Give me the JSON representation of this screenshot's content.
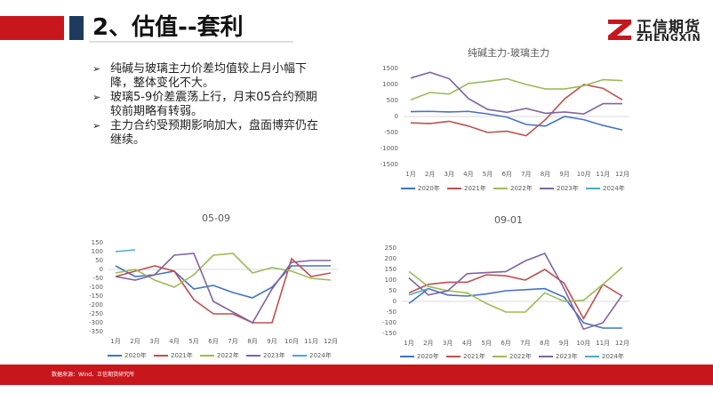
{
  "header": {
    "title": "2、估值--套利",
    "logo": "正信期货",
    "logo_en": "ZHENGXIN"
  },
  "bullets": [
    "纯碱与玻璃主力价差均值较上月小幅下降，整体变化不大。",
    "玻璃5-9价差震荡上行，月末05合约预期较前期略有转弱。",
    "主力合约受预期影响加大，盘面博弈仍在继续。"
  ],
  "source": "数据来源：Wind、正信期货研究所",
  "chart_data": [
    {
      "type": "line",
      "title": "纯碱主力-玻璃主力",
      "categories": [
        "1月",
        "2月",
        "3月",
        "4月",
        "5月",
        "6月",
        "7月",
        "8月",
        "9月",
        "10月",
        "11月",
        "12月"
      ],
      "ylim": [
        -1500,
        1500
      ],
      "yticks": [
        -1500,
        -1000,
        -500,
        0,
        500,
        1000,
        1500
      ],
      "series": [
        {
          "name": "2020年",
          "color": "#4472c4",
          "values": [
            150,
            160,
            140,
            160,
            80,
            -20,
            -250,
            -300,
            0,
            -100,
            -280,
            -420
          ]
        },
        {
          "name": "2021年",
          "color": "#c0504d",
          "values": [
            -200,
            -220,
            -150,
            -300,
            -500,
            -460,
            -600,
            -100,
            550,
            1000,
            880,
            520
          ]
        },
        {
          "name": "2022年",
          "color": "#9bbb59",
          "values": [
            520,
            750,
            700,
            1030,
            1100,
            1180,
            1000,
            860,
            860,
            960,
            1150,
            1120
          ]
        },
        {
          "name": "2023年",
          "color": "#8064a2",
          "values": [
            1200,
            1380,
            1180,
            560,
            220,
            130,
            250,
            100,
            140,
            80,
            400,
            400
          ]
        },
        {
          "name": "2024年",
          "color": "#4bacc6",
          "values": [
            null,
            null,
            null,
            null,
            null,
            null,
            null,
            null,
            null,
            null,
            null,
            null
          ]
        }
      ]
    },
    {
      "type": "line",
      "title": "05-09",
      "categories": [
        "1月",
        "2月",
        "3月",
        "4月",
        "5月",
        "6月",
        "7月",
        "8月",
        "9月",
        "10月",
        "11月",
        "12月"
      ],
      "ylim": [
        -350,
        150
      ],
      "yticks": [
        -350,
        -300,
        -250,
        -200,
        -150,
        -100,
        -50,
        0,
        50,
        100,
        150
      ],
      "series": [
        {
          "name": "2020年",
          "color": "#4472c4",
          "values": [
            20,
            -40,
            -30,
            -10,
            -110,
            -90,
            -130,
            -160,
            -100,
            20,
            20,
            20
          ]
        },
        {
          "name": "2021年",
          "color": "#c0504d",
          "values": [
            -40,
            -10,
            20,
            -10,
            -170,
            -250,
            -250,
            -300,
            -300,
            60,
            -40,
            -20
          ]
        },
        {
          "name": "2022年",
          "color": "#9bbb59",
          "values": [
            -20,
            0,
            -60,
            -100,
            -30,
            80,
            90,
            -20,
            10,
            -10,
            -50,
            -60
          ]
        },
        {
          "name": "2023年",
          "color": "#8064a2",
          "values": [
            -40,
            -60,
            -30,
            80,
            90,
            -180,
            -240,
            -300,
            -110,
            40,
            50,
            50
          ]
        },
        {
          "name": "2024年",
          "color": "#4bacc6",
          "values": [
            100,
            110,
            null,
            null,
            null,
            null,
            null,
            null,
            null,
            null,
            null,
            null
          ]
        }
      ]
    },
    {
      "type": "line",
      "title": "09-01",
      "categories": [
        "1月",
        "2月",
        "3月",
        "4月",
        "5月",
        "6月",
        "7月",
        "8月",
        "9月",
        "10月",
        "11月",
        "12月"
      ],
      "ylim": [
        -150,
        250
      ],
      "yticks": [
        -150,
        -100,
        -50,
        0,
        50,
        100,
        150,
        200,
        250
      ],
      "series": [
        {
          "name": "2020年",
          "color": "#4472c4",
          "values": [
            -10,
            60,
            30,
            25,
            35,
            50,
            55,
            60,
            20,
            -100,
            -125,
            -125
          ]
        },
        {
          "name": "2021年",
          "color": "#c0504d",
          "values": [
            40,
            80,
            90,
            90,
            125,
            120,
            100,
            150,
            85,
            -80,
            80,
            25
          ]
        },
        {
          "name": "2022年",
          "color": "#9bbb59",
          "values": [
            140,
            70,
            50,
            40,
            -10,
            -50,
            -50,
            40,
            0,
            5,
            80,
            160
          ]
        },
        {
          "name": "2023年",
          "color": "#8064a2",
          "values": [
            110,
            30,
            50,
            130,
            135,
            140,
            190,
            225,
            60,
            -130,
            -100,
            30
          ]
        },
        {
          "name": "2024年",
          "color": "#4bacc6",
          "values": [
            30,
            60,
            null,
            null,
            null,
            null,
            null,
            null,
            null,
            null,
            null,
            null
          ]
        }
      ]
    }
  ]
}
